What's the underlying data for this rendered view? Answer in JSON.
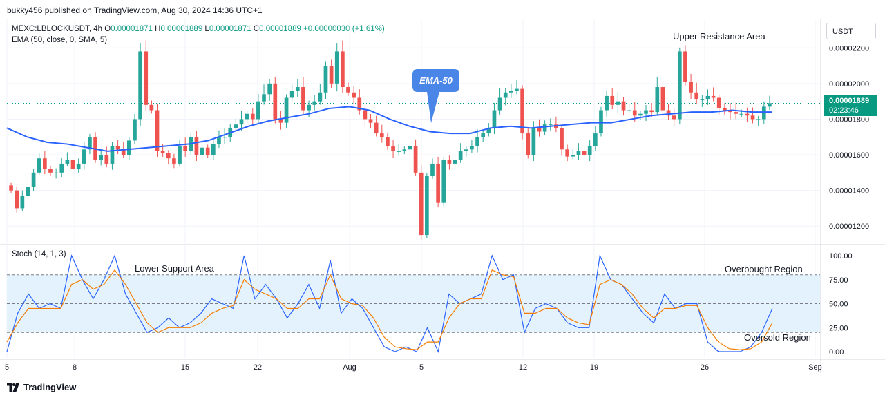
{
  "header": {
    "publish_line": "bukky456 published on TradingView.com, Aug 30, 2024 14:36 UTC+1"
  },
  "legend": {
    "symbol": "MEXC:LBLOCKUSDT, 4h",
    "o_label": "O",
    "o": "0.00001871",
    "h_label": "H",
    "h": "0.00001889",
    "l_label": "L",
    "l": "0.00001871",
    "c_label": "C",
    "c": "0.00001889",
    "change": "+0.00000030 (+1.61%)",
    "ema": "EMA (50, close, 0, SMA, 5)",
    "stoch": "Stoch (14, 1, 3)"
  },
  "price_axis": {
    "currency": "USDT",
    "ticks": [
      "0.00002200",
      "0.00002000",
      "0.00001800",
      "0.00001600",
      "0.00001400",
      "0.00001200"
    ],
    "current_price": "0.00001889",
    "countdown": "02:23:46"
  },
  "stoch_axis": {
    "ticks": [
      "100.00",
      "75.00",
      "50.00",
      "25.00",
      "0.00"
    ]
  },
  "time_axis": {
    "ticks": [
      "5",
      "8",
      "15",
      "22",
      "Aug",
      "5",
      "12",
      "19",
      "26",
      "Sep"
    ]
  },
  "annotations": {
    "ema_callout": "EMA-50",
    "upper_resistance": "Upper Resistance Area",
    "lower_support": "Lower Support Area",
    "overbought": "Overbought Region",
    "oversold": "Oversold Region"
  },
  "footer": {
    "brand": "TradingView"
  },
  "colors": {
    "up": "#26a69a",
    "down": "#ef5350",
    "ema": "#2962ff",
    "stoch_k": "#2962ff",
    "stoch_d": "#f57c00",
    "band": "#e3f2fd",
    "callout": "#4a86e8"
  },
  "chart_data": {
    "type": "candlestick",
    "timeframe": "4h",
    "price_unit": "USDT",
    "ylim": [
      1.1e-05,
      2.36e-05
    ],
    "time_ticks": [
      "5",
      "8",
      "15",
      "22",
      "Aug",
      "5",
      "12",
      "19",
      "26",
      "Sep"
    ],
    "candles_close_approx": [
      1.4e-05,
      1.3e-05,
      1.37e-05,
      1.42e-05,
      1.5e-05,
      1.58e-05,
      1.52e-05,
      1.5e-05,
      1.5e-05,
      1.55e-05,
      1.57e-05,
      1.52e-05,
      1.55e-05,
      1.63e-05,
      1.7e-05,
      1.57e-05,
      1.6e-05,
      1.55e-05,
      1.65e-05,
      1.63e-05,
      1.6e-05,
      1.68e-05,
      1.8e-05,
      2.18e-05,
      1.88e-05,
      1.85e-05,
      1.62e-05,
      1.61e-05,
      1.58e-05,
      1.55e-05,
      1.65e-05,
      1.62e-05,
      1.7e-05,
      1.6e-05,
      1.64e-05,
      1.6e-05,
      1.66e-05,
      1.7e-05,
      1.7e-05,
      1.75e-05,
      1.77e-05,
      1.8e-05,
      1.83e-05,
      1.8e-05,
      1.9e-05,
      1.94e-05,
      2e-05,
      1.8e-05,
      1.78e-05,
      1.92e-05,
      1.96e-05,
      1.98e-05,
      1.85e-05,
      1.88e-05,
      1.9e-05,
      1.95e-05,
      2.1e-05,
      2e-05,
      2.18e-05,
      1.98e-05,
      1.95e-05,
      1.92e-05,
      1.85e-05,
      1.8e-05,
      1.78e-05,
      1.72e-05,
      1.7e-05,
      1.65e-05,
      1.62e-05,
      1.62e-05,
      1.63e-05,
      1.65e-05,
      1.5e-05,
      1.15e-05,
      1.48e-05,
      1.55e-05,
      1.33e-05,
      1.57e-05,
      1.55e-05,
      1.57e-05,
      1.62e-05,
      1.63e-05,
      1.65e-05,
      1.7e-05,
      1.72e-05,
      1.75e-05,
      1.85e-05,
      1.92e-05,
      1.95e-05,
      1.96e-05,
      1.97e-05,
      1.72e-05,
      1.6e-05,
      1.75e-05,
      1.73e-05,
      1.77e-05,
      1.77e-05,
      1.75e-05,
      1.63e-05,
      1.59e-05,
      1.6e-05,
      1.62e-05,
      1.6e-05,
      1.65e-05,
      1.72e-05,
      1.85e-05,
      1.93e-05,
      1.88e-05,
      1.9e-05,
      1.85e-05,
      1.85e-05,
      1.82e-05,
      1.83e-05,
      1.85e-05,
      1.84e-05,
      1.98e-05,
      1.85e-05,
      1.82e-05,
      1.8e-05,
      2.18e-05,
      2.01e-05,
      1.95e-05,
      1.91e-05,
      1.91e-05,
      1.93e-05,
      1.92e-05,
      1.86e-05,
      1.85e-05,
      1.84e-05,
      1.83e-05,
      1.83e-05,
      1.82e-05,
      1.8e-05,
      1.8e-05,
      1.87e-05,
      1.89e-05
    ],
    "ema50_approx": [
      1.75e-05,
      1.7e-05,
      1.67e-05,
      1.66e-05,
      1.64e-05,
      1.62e-05,
      1.63e-05,
      1.64e-05,
      1.65e-05,
      1.66e-05,
      1.68e-05,
      1.72e-05,
      1.76e-05,
      1.79e-05,
      1.81e-05,
      1.83e-05,
      1.86e-05,
      1.87e-05,
      1.85e-05,
      1.8e-05,
      1.76e-05,
      1.73e-05,
      1.72e-05,
      1.72e-05,
      1.75e-05,
      1.76e-05,
      1.75e-05,
      1.76e-05,
      1.77e-05,
      1.78e-05,
      1.78e-05,
      1.8e-05,
      1.82e-05,
      1.83e-05,
      1.84e-05,
      1.84e-05,
      1.85e-05,
      1.84e-05,
      1.84e-05
    ],
    "stoch_k_approx": [
      0,
      40,
      60,
      45,
      50,
      45,
      100,
      75,
      55,
      75,
      100,
      60,
      40,
      20,
      25,
      35,
      25,
      30,
      40,
      55,
      50,
      45,
      100,
      55,
      70,
      55,
      35,
      50,
      70,
      45,
      95,
      40,
      55,
      45,
      25,
      5,
      0,
      5,
      0,
      25,
      0,
      60,
      50,
      55,
      60,
      100,
      75,
      80,
      20,
      45,
      50,
      45,
      30,
      25,
      25,
      100,
      75,
      70,
      55,
      40,
      30,
      60,
      45,
      50,
      50,
      10,
      0,
      0,
      0,
      5,
      20,
      45
    ],
    "stoch_d_approx": [
      10,
      30,
      45,
      45,
      45,
      45,
      70,
      75,
      65,
      70,
      85,
      70,
      50,
      30,
      20,
      25,
      25,
      25,
      30,
      40,
      45,
      48,
      75,
      65,
      60,
      55,
      45,
      45,
      55,
      55,
      80,
      55,
      50,
      48,
      35,
      15,
      5,
      3,
      2,
      10,
      10,
      35,
      50,
      55,
      55,
      85,
      80,
      78,
      40,
      40,
      45,
      45,
      35,
      30,
      28,
      70,
      75,
      70,
      60,
      45,
      35,
      45,
      45,
      48,
      48,
      25,
      10,
      3,
      2,
      3,
      10,
      30
    ],
    "stoch_levels": {
      "overbought": 80,
      "middle": 50,
      "oversold": 20
    },
    "stoch_ylim": [
      0,
      100
    ]
  }
}
